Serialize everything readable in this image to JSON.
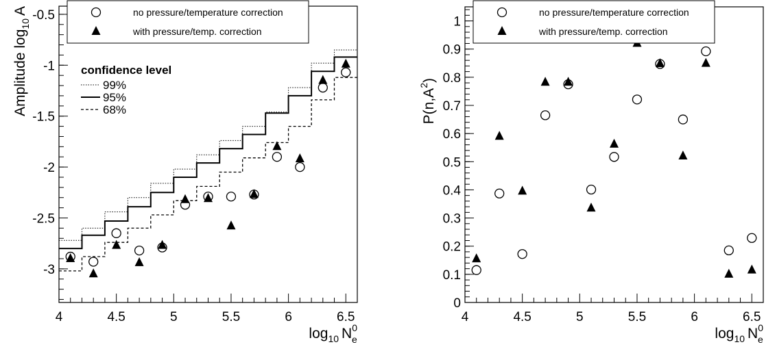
{
  "chart_data": [
    {
      "type": "scatter",
      "ylabel": "Amplitude log",
      "ylabel_sub": "10",
      "ylabel_tail": "A",
      "xlabel_main": "log",
      "xlabel_sub": "10",
      "xlabel_var": "N",
      "xlabel_var_sup": "0",
      "xlabel_var_sub": "e",
      "xlim": [
        4.0,
        6.6
      ],
      "ylim": [
        -3.33,
        -0.42
      ],
      "xticks": [
        "4",
        "4.5",
        "5",
        "5.5",
        "6",
        "6.5"
      ],
      "yticks": [
        "-0.5",
        "-1",
        "-1.5",
        "-2",
        "-2.5",
        "-3"
      ],
      "legend_position": "top",
      "series": [
        {
          "name": "no pressure/temperature correction",
          "marker": "open-circle",
          "x": [
            4.1,
            4.3,
            4.5,
            4.7,
            4.9,
            5.1,
            5.3,
            5.5,
            5.7,
            5.9,
            6.1,
            6.3,
            6.5
          ],
          "y": [
            -2.88,
            -2.93,
            -2.65,
            -2.82,
            -2.79,
            -2.37,
            -2.29,
            -2.29,
            -2.27,
            -1.9,
            -2.0,
            -1.22,
            -1.07
          ]
        },
        {
          "name": "with pressure/temp. correction",
          "marker": "filled-triangle",
          "x": [
            4.1,
            4.3,
            4.5,
            4.7,
            4.9,
            5.1,
            5.3,
            5.5,
            5.7,
            5.9,
            6.1,
            6.3,
            6.5
          ],
          "y": [
            -2.9,
            -3.05,
            -2.77,
            -2.94,
            -2.77,
            -2.32,
            -2.31,
            -2.58,
            -2.27,
            -1.8,
            -1.92,
            -1.15,
            -0.99
          ]
        }
      ],
      "confidence": {
        "title": "confidence level",
        "steps_x": [
          4.0,
          4.2,
          4.4,
          4.6,
          4.8,
          5.0,
          5.2,
          5.4,
          5.6,
          5.8,
          6.0,
          6.2,
          6.4,
          6.6
        ],
        "lines": [
          {
            "label": "99%",
            "style": "dotted",
            "y": [
              -2.72,
              -2.6,
              -2.44,
              -2.3,
              -2.16,
              -2.02,
              -1.88,
              -1.74,
              -1.6,
              -1.46,
              -1.22,
              -0.98,
              -0.85
            ]
          },
          {
            "label": "95%",
            "style": "solid",
            "y": [
              -2.8,
              -2.67,
              -2.53,
              -2.39,
              -2.25,
              -2.1,
              -1.96,
              -1.82,
              -1.68,
              -1.47,
              -1.3,
              -1.06,
              -0.92
            ]
          },
          {
            "label": "68%",
            "style": "dashed",
            "y": [
              -3.02,
              -2.88,
              -2.74,
              -2.6,
              -2.47,
              -2.33,
              -2.19,
              -2.05,
              -1.91,
              -1.76,
              -1.6,
              -1.34,
              -1.12
            ]
          }
        ]
      }
    },
    {
      "type": "scatter",
      "ylabel": "P(n,A",
      "ylabel_sup": "2",
      "ylabel_tail": ")",
      "xlabel_main": "log",
      "xlabel_sub": "10",
      "xlabel_var": "N",
      "xlabel_var_sup": "0",
      "xlabel_var_sub": "e",
      "xlim": [
        4.0,
        6.6
      ],
      "ylim": [
        0,
        1.05
      ],
      "xticks": [
        "4",
        "4.5",
        "5",
        "5.5",
        "6",
        "6.5"
      ],
      "yticks": [
        "0",
        "0.1",
        "0.2",
        "0.3",
        "0.4",
        "0.5",
        "0.6",
        "0.7",
        "0.8",
        "0.9",
        "1"
      ],
      "legend_position": "top",
      "series": [
        {
          "name": "no pressure/temperature correction",
          "marker": "open-circle",
          "x": [
            4.1,
            4.3,
            4.5,
            4.7,
            4.9,
            5.1,
            5.3,
            5.5,
            5.7,
            5.9,
            6.1,
            6.3,
            6.5
          ],
          "y": [
            0.115,
            0.387,
            0.172,
            0.665,
            0.775,
            0.401,
            0.517,
            0.721,
            0.847,
            0.65,
            0.892,
            0.185,
            0.229
          ]
        },
        {
          "name": "with pressure/temp. correction",
          "marker": "filled-triangle",
          "x": [
            4.1,
            4.3,
            4.5,
            4.7,
            4.9,
            5.1,
            5.3,
            5.5,
            5.7,
            5.9,
            6.1,
            6.3,
            6.5
          ],
          "y": [
            0.155,
            0.59,
            0.395,
            0.782,
            0.782,
            0.335,
            0.562,
            0.92,
            0.848,
            0.52,
            0.849,
            0.1,
            0.115
          ]
        }
      ]
    }
  ]
}
